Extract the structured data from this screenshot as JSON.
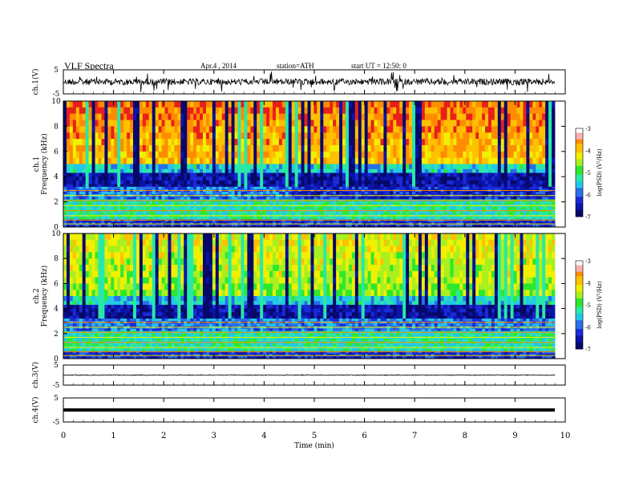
{
  "header": {
    "title": "VLF Spectra",
    "date": "Apr.4 , 2014",
    "station": "station=ATH",
    "start": "start UT = 12:50: 0"
  },
  "chart_data": {
    "type": "heatmap",
    "x_axis": {
      "label": "Time (min)",
      "range": [
        0,
        10
      ],
      "ticks": [
        "0",
        "1",
        "2",
        "3",
        "4",
        "5",
        "6",
        "7",
        "8",
        "9",
        "10"
      ]
    },
    "panels": [
      {
        "id": "ch1-wave",
        "type": "line",
        "ylabel": "ch.1(V)",
        "ylim": [
          -5,
          5
        ],
        "yticks": [
          "5",
          "-5"
        ],
        "amplitude": "noisy"
      },
      {
        "id": "ch1-spec",
        "type": "heatmap",
        "ylabel": "ch.1",
        "sublabel": "Frequency (kHz)",
        "ylim": [
          0,
          10
        ],
        "yticks": [
          "0",
          "2",
          "4",
          "6",
          "8",
          "10"
        ],
        "colorbar": {
          "label": "log(PSD) (V²/Hz)",
          "range": [
            -7,
            -3
          ],
          "ticks": [
            "-3",
            "-4",
            "-5",
            "-6",
            "-7"
          ]
        }
      },
      {
        "id": "ch2-spec",
        "type": "heatmap",
        "ylabel": "ch.2",
        "sublabel": "Frequency (kHz)",
        "ylim": [
          0,
          10
        ],
        "yticks": [
          "0",
          "2",
          "4",
          "6",
          "8",
          "10"
        ],
        "colorbar": {
          "label": "log(PSD) (V²/Hz)",
          "range": [
            -7,
            -3
          ],
          "ticks": [
            "-3",
            "-4",
            "-5",
            "-6",
            "-7"
          ]
        }
      },
      {
        "id": "ch3-wave",
        "type": "line",
        "ylabel": "ch.3(V)",
        "ylim": [
          -5,
          5
        ],
        "yticks": [
          "5",
          "-5"
        ],
        "amplitude": "low"
      },
      {
        "id": "ch4-wave",
        "type": "line",
        "ylabel": "ch.4(V)",
        "ylim": [
          -5,
          5
        ],
        "yticks": [
          "5",
          "-5"
        ],
        "amplitude": "flat"
      }
    ],
    "colors": {
      "red": "#e8201a",
      "orange": "#ff8c00",
      "yellow": "#f0f000",
      "green": "#2ee82e",
      "cyan": "#22c8e8",
      "blue": "#1a2ad8",
      "navy": "#0a0a6a"
    }
  }
}
